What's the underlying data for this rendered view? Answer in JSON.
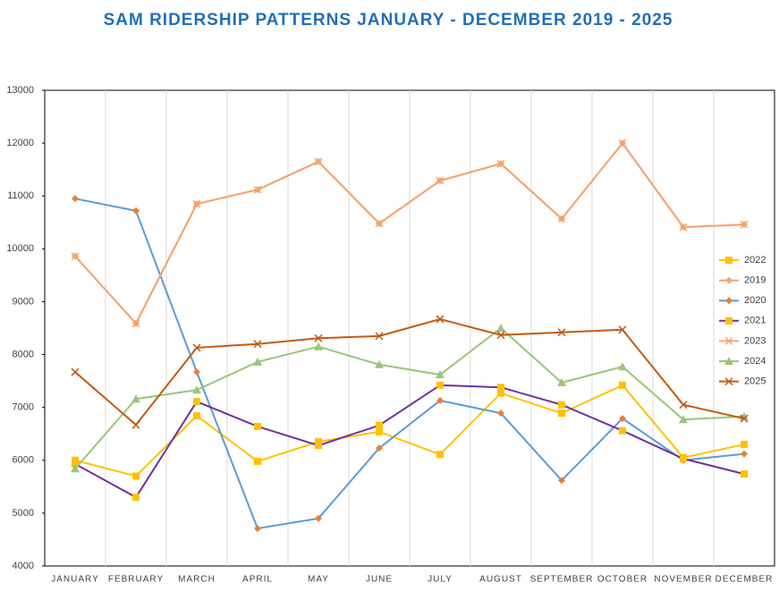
{
  "chart_data": {
    "type": "line",
    "title": "SAM RIDERSHIP PATTERNS JANUARY - DECEMBER 2019 - 2025",
    "categories": [
      "JANUARY",
      "FEBRUARY",
      "MARCH",
      "APRIL",
      "MAY",
      "JUNE",
      "JULY",
      "AUGUST",
      "SEPTEMBER",
      "OCTOBER",
      "NOVEMBER",
      "DECEMBER"
    ],
    "ylim": [
      4000,
      13000
    ],
    "yticks": [
      4000,
      5000,
      6000,
      7000,
      8000,
      9000,
      10000,
      11000,
      12000,
      13000
    ],
    "grid": "vertical",
    "legend": "right",
    "series": [
      {
        "name": "2022",
        "color": "#FFC000",
        "marker": "square",
        "marker_color": "#FFC000",
        "values": [
          6000,
          5700,
          6840,
          5980,
          6350,
          6540,
          6110,
          7270,
          6890,
          7420,
          6050,
          6300
        ]
      },
      {
        "name": "2019",
        "color": "#F4A46E",
        "marker": "diamond",
        "marker_color": "#F4A46E",
        "values": [
          9860,
          8590,
          10850,
          11120,
          11650,
          10480,
          11290,
          11610,
          10570,
          12000,
          10410,
          10460
        ]
      },
      {
        "name": "2020",
        "color": "#5B9BD5",
        "marker": "diamond",
        "marker_color": "#ED7D31",
        "values": [
          10950,
          10720,
          7670,
          4710,
          4900,
          6230,
          7130,
          6890,
          5620,
          6790,
          6000,
          6120
        ]
      },
      {
        "name": "2021",
        "color": "#7030A0",
        "marker": "square",
        "marker_color": "#FFC000",
        "values": [
          5930,
          5300,
          7110,
          6640,
          6280,
          6660,
          7420,
          7380,
          7050,
          6560,
          6030,
          5740
        ]
      },
      {
        "name": "2023",
        "color": "#F4A46E",
        "marker": "x",
        "marker_color": "#F4A46E",
        "values": [
          9860,
          8590,
          10850,
          11120,
          11650,
          10480,
          11290,
          11610,
          10570,
          12000,
          10410,
          10460
        ]
      },
      {
        "name": "2024",
        "color": "#9BC57A",
        "marker": "triangle",
        "marker_color": "#9BC57A",
        "values": [
          5840,
          7160,
          7330,
          7860,
          8150,
          7810,
          7620,
          8500,
          7470,
          7770,
          6770,
          6830
        ]
      },
      {
        "name": "2025",
        "color": "#C55A11",
        "marker": "x",
        "marker_color": "#C55A11",
        "values": [
          7670,
          6670,
          8130,
          8200,
          8310,
          8350,
          8670,
          8370,
          8420,
          8470,
          7050,
          6790
        ]
      }
    ]
  }
}
